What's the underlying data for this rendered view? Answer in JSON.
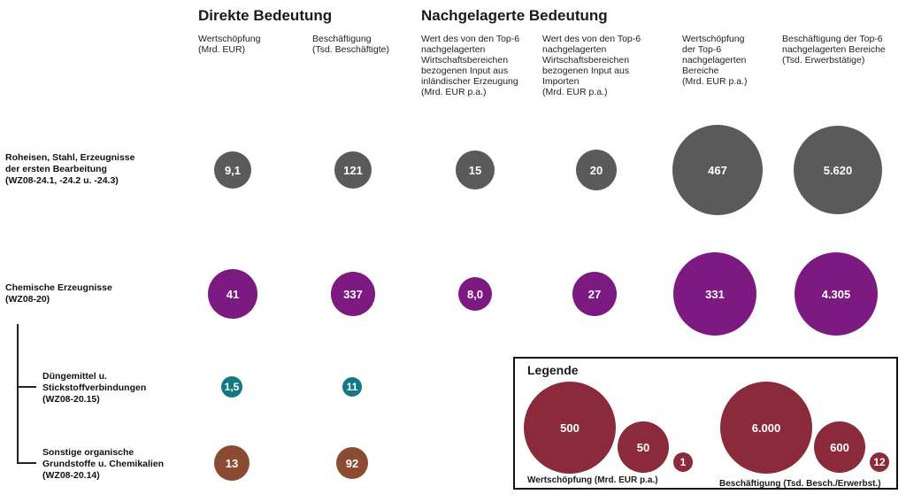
{
  "groups": {
    "direct": "Direkte Bedeutung",
    "downstream": "Nachgelagerte Bedeutung"
  },
  "columns": [
    "Wertschöpfung\n(Mrd. EUR)",
    "Beschäftigung\n(Tsd. Beschäftigte)",
    "Wert des von den Top-6\nnachgelagerten\nWirtschaftsbereichen\nbezogenen Input aus\ninländischer Erzeugung\n(Mrd. EUR p.a.)",
    "Wert des von den Top-6\nnachgelagerten\nWirtschaftsbereichen\nbezogenen Input aus\nImporten\n(Mrd. EUR p.a.)",
    "Wertschöpfung\nder Top-6\nnachgelagerten\nBereiche\n(Mrd. EUR p.a.)",
    "Beschäftigung der Top-6\nnachgelagerten Bereiche\n(Tsd. Erwerbstätige)"
  ],
  "rows": [
    {
      "label": "Roheisen, Stahl, Erzeugnisse\nder ersten Bearbeitung\n(WZ08-24.1, -24.2 u. -24.3)",
      "color": "#5a5a5a",
      "values": [
        "9,1",
        "121",
        "15",
        "20",
        "467",
        "5.620"
      ]
    },
    {
      "label": "Chemische Erzeugnisse\n(WZ08-20)",
      "color": "#7c1a82",
      "values": [
        "41",
        "337",
        "8,0",
        "27",
        "331",
        "4.305"
      ]
    },
    {
      "label": "Düngemittel u.\nStickstoffverbindungen\n(WZ08-20.15)",
      "color": "#127884",
      "values": [
        "1,5",
        "11"
      ]
    },
    {
      "label": "Sonstige organische\nGrundstoffe u. Chemikalien\n(WZ08-20.14)",
      "color": "#8a4b32",
      "values": [
        "13",
        "92"
      ]
    }
  ],
  "legend": {
    "title": "Legende",
    "color": "#8b2a3a",
    "value_added_values": [
      "500",
      "50",
      "1"
    ],
    "value_added_caption": "Wertschöpfung (Mrd. EUR p.a.)",
    "employment_values": [
      "6.000",
      "600",
      "12"
    ],
    "employment_caption": "Beschäftigung (Tsd. Besch./Erwerbst.)"
  }
}
